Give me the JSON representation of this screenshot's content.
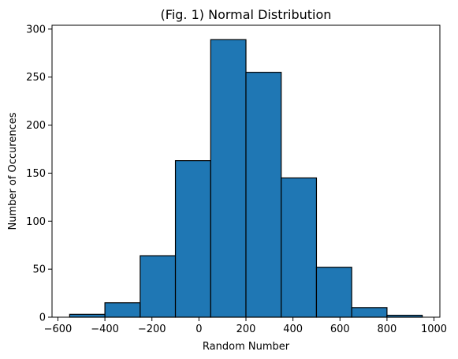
{
  "chart_data": {
    "type": "bar",
    "title": "(Fig. 1) Normal Distribution",
    "xlabel": "Random Number",
    "ylabel": "Number of Occurences",
    "bin_edges": [
      -550,
      -400,
      -250,
      -100,
      50,
      200,
      350,
      500,
      650,
      800,
      950
    ],
    "values": [
      3,
      15,
      64,
      163,
      289,
      255,
      145,
      52,
      10,
      2
    ],
    "xlim": [
      -625,
      1025
    ],
    "ylim": [
      0,
      304
    ],
    "xticks": [
      -600,
      -400,
      -200,
      0,
      200,
      400,
      600,
      800,
      1000
    ],
    "yticks": [
      0,
      50,
      100,
      150,
      200,
      250,
      300
    ],
    "bar_color": "#1f77b4",
    "edge_color": "#000000",
    "grid": false
  }
}
